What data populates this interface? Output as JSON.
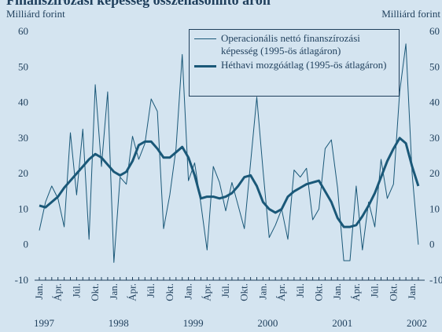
{
  "chart_data": {
    "type": "line",
    "title": "Finanszírozási képesség összehasonlító áron",
    "y_label": "Milliárd forint",
    "y2_label": "Milliárd forint",
    "categories": [
      "Jan.",
      null,
      null,
      "Ápr.",
      null,
      null,
      "Júl.",
      null,
      null,
      "Okt.",
      null,
      null,
      "Jan.",
      null,
      null,
      "Ápr.",
      null,
      null,
      "Júl.",
      null,
      null,
      "Okt.",
      null,
      null,
      "Jan.",
      null,
      null,
      "Ápr.",
      null,
      null,
      "Júl.",
      null,
      null,
      "Okt.",
      null,
      null,
      "Jan.",
      null,
      null,
      "Ápr.",
      null,
      null,
      "Júl.",
      null,
      null,
      "Okt.",
      null,
      null,
      "Jan.",
      null,
      null,
      "Ápr.",
      null,
      null,
      "Júl.",
      null,
      null,
      "Okt.",
      null,
      null,
      "Jan.",
      null
    ],
    "years": [
      "1997",
      "1998",
      "1999",
      "2000",
      "2001",
      "2002"
    ],
    "series": [
      {
        "name": "Operacionális nettó finanszírozási képesség (1995-ös átlagáron)",
        "color": "#1a5878",
        "width": 1,
        "values": [
          4,
          12,
          16.5,
          13,
          5,
          31.5,
          14,
          32.5,
          1.5,
          45,
          22,
          43,
          -5,
          19,
          17,
          30.5,
          24,
          28.5,
          41,
          37.5,
          4.5,
          14,
          27,
          53.5,
          18,
          23,
          11.5,
          -1.5,
          22,
          17.5,
          9.5,
          17.5,
          11,
          4.5,
          23,
          41.5,
          21,
          2,
          5.5,
          10,
          1.5,
          21,
          19,
          21.5,
          7,
          10,
          27,
          29.5,
          16,
          -4.5,
          -4.5,
          16.5,
          -1.5,
          12,
          5,
          24,
          13,
          17,
          43,
          56.5,
          20,
          0
        ]
      },
      {
        "name": "Héthavi mozgóátlag (1995-ös átlagáron)",
        "color": "#1a5878",
        "width": 3,
        "values": [
          11,
          10.5,
          12,
          13.5,
          16,
          18,
          20,
          22,
          24,
          25.5,
          24.5,
          22.5,
          20.5,
          19.5,
          20.5,
          23.5,
          28,
          29,
          29,
          27,
          24.5,
          24.5,
          26,
          27.5,
          24.5,
          19.5,
          13,
          13.5,
          13.5,
          13,
          13.5,
          14.5,
          16.5,
          19,
          19.5,
          16.5,
          12,
          10,
          9,
          10,
          13.5,
          15,
          16,
          17,
          17.5,
          18,
          15,
          12,
          7.5,
          5,
          5,
          5.5,
          8,
          11,
          14.5,
          19,
          23.5,
          27,
          30,
          28.5,
          22,
          16.5
        ]
      }
    ],
    "ylim": [
      -10,
      60
    ],
    "yticks": [
      -10,
      0,
      10,
      20,
      30,
      40,
      50,
      60
    ],
    "y2lim": [
      -10,
      60
    ],
    "y2ticks": [
      -10,
      0,
      10,
      20,
      30,
      40,
      50,
      60
    ],
    "legend": "top-right"
  }
}
